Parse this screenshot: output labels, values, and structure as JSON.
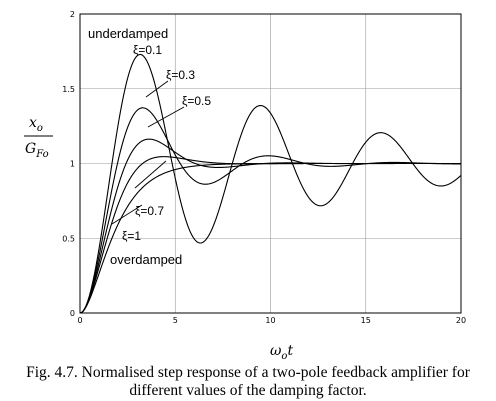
{
  "chart_data": {
    "type": "line",
    "title": "",
    "xlabel_main": "ω",
    "xlabel_sub": "o",
    "xlabel_tail": "t",
    "ylabel_num_main": "x",
    "ylabel_num_sub": "o",
    "ylabel_den_main": "G",
    "ylabel_den_sub": "Fo",
    "xlim": [
      0,
      20
    ],
    "ylim": [
      0,
      2
    ],
    "xticks": [
      "0",
      "5",
      "10",
      "15",
      "20"
    ],
    "yticks": [
      "0",
      "0.5",
      "1",
      "1.5",
      "2"
    ],
    "grid": true,
    "series": [
      {
        "name": "ξ=0.1",
        "zeta": 0.1
      },
      {
        "name": "ξ=0.3",
        "zeta": 0.3
      },
      {
        "name": "ξ=0.5",
        "zeta": 0.5
      },
      {
        "name": "ξ=0.7",
        "zeta": 0.7
      },
      {
        "name": "ξ=1",
        "zeta": 1.0
      }
    ],
    "annotations": {
      "top": "underdamped",
      "bottom": "overdamped"
    }
  },
  "caption_line1": "Fig. 4.7. Normalised step response of a two-pole feedback amplifier for",
  "caption_line2": "different values of the damping factor."
}
